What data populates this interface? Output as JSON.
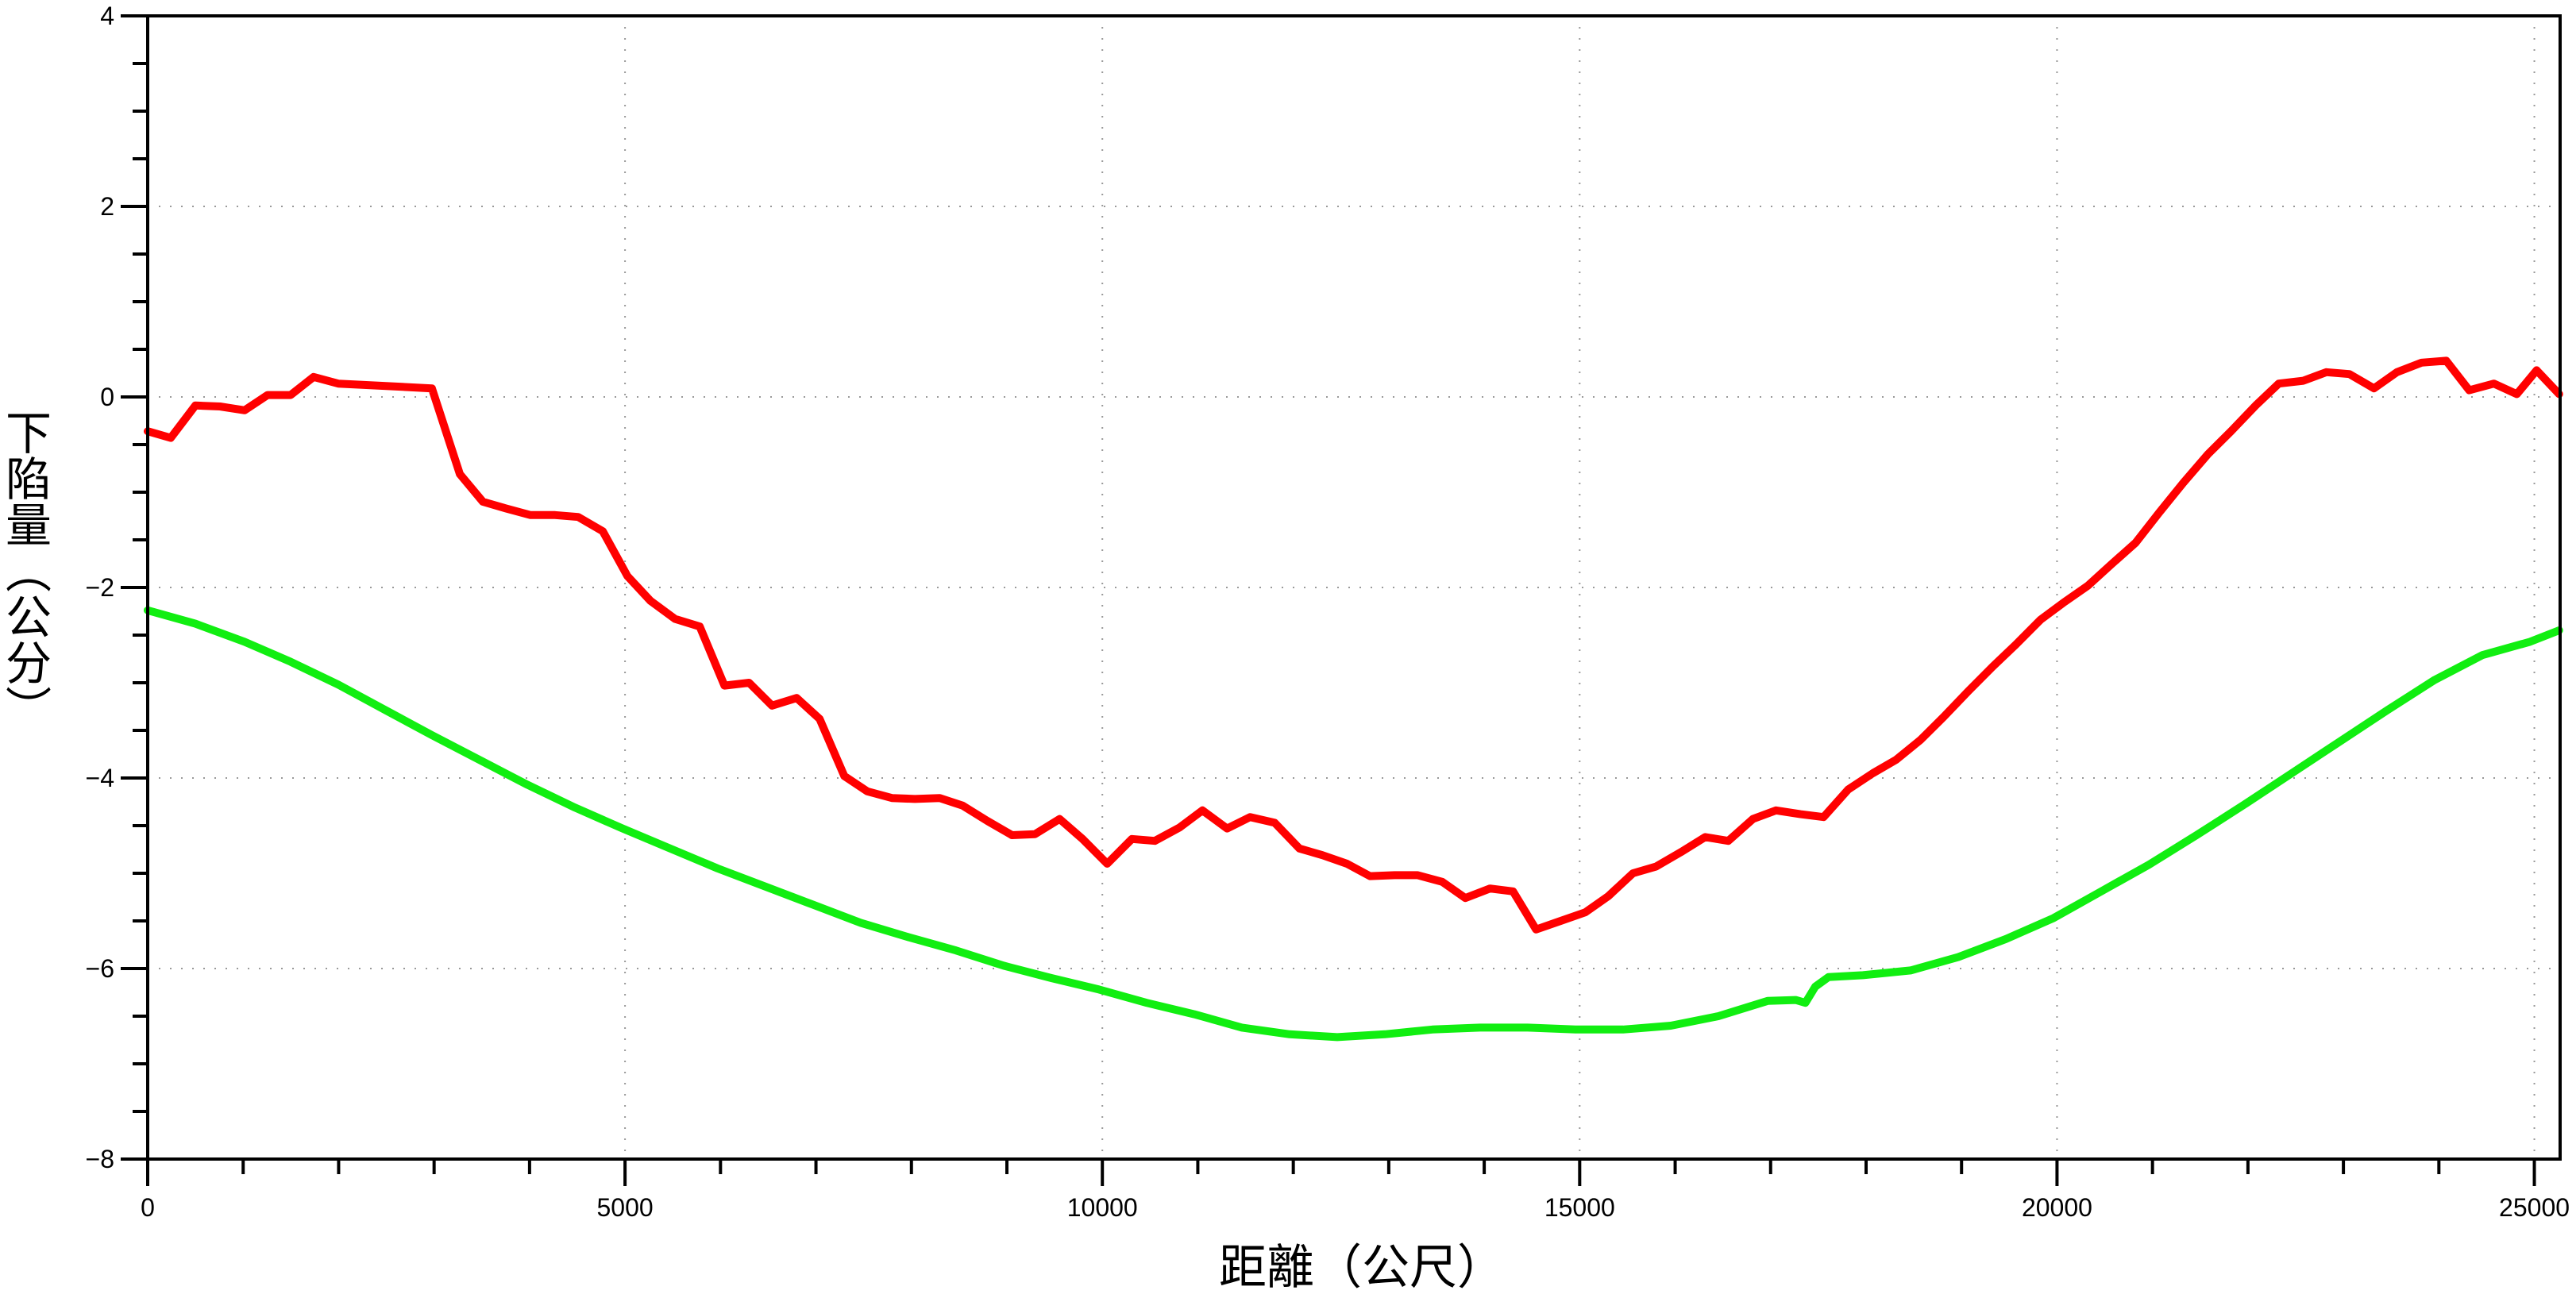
{
  "chart_data": {
    "type": "line",
    "title": "",
    "xlabel": "距離（公尺）",
    "ylabel": "下陷量（公分）",
    "xlim": [
      0,
      25270
    ],
    "ylim": [
      -8,
      4
    ],
    "x_ticks": [
      0,
      5000,
      10000,
      15000,
      20000,
      25000
    ],
    "x_tick_labels": [
      "0",
      "5000",
      "10000",
      "15000",
      "20000",
      "25000"
    ],
    "y_ticks": [
      4,
      2,
      0,
      -2,
      -4,
      -6,
      -8
    ],
    "y_tick_labels": [
      "4",
      "2",
      "0",
      "−2",
      "−4",
      "−6",
      "−8"
    ],
    "grid": true,
    "series": [
      {
        "color": "#ff0000",
        "x": [
          0,
          241,
          499,
          757,
          1015,
          1256,
          1497,
          1738,
          1996,
          2977,
          3270,
          3511,
          3752,
          4010,
          4268,
          4509,
          4767,
          5025,
          5266,
          5524,
          5783,
          6041,
          6299,
          6540,
          6798,
          7039,
          7297,
          7538,
          7796,
          8037,
          8296,
          8537,
          8795,
          9053,
          9294,
          9552,
          9793,
          10051,
          10309,
          10550,
          10808,
          11049,
          11307,
          11548,
          11806,
          12064,
          12305,
          12563,
          12804,
          13062,
          13303,
          13561,
          13802,
          14061,
          14302,
          14543,
          14801,
          15059,
          15300,
          15558,
          15799,
          16057,
          16315,
          16556,
          16815,
          17056,
          17314,
          17555,
          17813,
          18071,
          18312,
          18570,
          18811,
          19069,
          19327,
          19568,
          19826,
          20067,
          20325,
          20566,
          20824,
          21065,
          21324,
          21582,
          21823,
          22081,
          22322,
          22580,
          22821,
          23062,
          23320,
          23561,
          23819,
          24077,
          24318,
          24576,
          24817,
          25024,
          25260
        ],
        "y": [
          -0.36,
          -0.43,
          -0.09,
          -0.1,
          -0.14,
          0.02,
          0.02,
          0.21,
          0.14,
          0.09,
          -0.81,
          -1.1,
          -1.17,
          -1.24,
          -1.24,
          -1.26,
          -1.41,
          -1.88,
          -2.14,
          -2.33,
          -2.41,
          -3.03,
          -3.0,
          -3.24,
          -3.16,
          -3.38,
          -3.98,
          -4.14,
          -4.21,
          -4.22,
          -4.21,
          -4.29,
          -4.45,
          -4.6,
          -4.59,
          -4.43,
          -4.64,
          -4.9,
          -4.64,
          -4.66,
          -4.52,
          -4.34,
          -4.53,
          -4.41,
          -4.47,
          -4.74,
          -4.81,
          -4.9,
          -5.03,
          -5.02,
          -5.02,
          -5.09,
          -5.26,
          -5.16,
          -5.19,
          -5.59,
          -5.5,
          -5.41,
          -5.24,
          -5.0,
          -4.93,
          -4.78,
          -4.62,
          -4.66,
          -4.43,
          -4.34,
          -4.38,
          -4.41,
          -4.12,
          -3.95,
          -3.81,
          -3.6,
          -3.36,
          -3.09,
          -2.83,
          -2.6,
          -2.34,
          -2.16,
          -1.98,
          -1.76,
          -1.53,
          -1.22,
          -0.9,
          -0.6,
          -0.36,
          -0.09,
          0.14,
          0.17,
          0.26,
          0.24,
          0.09,
          0.26,
          0.36,
          0.38,
          0.07,
          0.14,
          0.03,
          0.28,
          0.03
        ]
      },
      {
        "color": "#11ee11",
        "x": [
          0,
          499,
          1015,
          1497,
          1996,
          2495,
          2977,
          3476,
          3976,
          4475,
          4974,
          5473,
          5972,
          6471,
          6970,
          7469,
          7968,
          8467,
          8966,
          9466,
          9965,
          10464,
          10963,
          11462,
          11961,
          12460,
          12959,
          13458,
          13957,
          14456,
          14956,
          15455,
          15954,
          16453,
          16969,
          17262,
          17365,
          17468,
          17606,
          17967,
          18466,
          18965,
          19465,
          19964,
          20463,
          20962,
          21461,
          21960,
          22459,
          22958,
          23457,
          23957,
          24456,
          24955,
          25260
        ],
        "y": [
          -2.24,
          -2.38,
          -2.57,
          -2.78,
          -3.02,
          -3.29,
          -3.55,
          -3.81,
          -4.07,
          -4.31,
          -4.53,
          -4.74,
          -4.95,
          -5.14,
          -5.33,
          -5.52,
          -5.67,
          -5.81,
          -5.97,
          -6.1,
          -6.22,
          -6.36,
          -6.48,
          -6.62,
          -6.69,
          -6.72,
          -6.69,
          -6.64,
          -6.62,
          -6.62,
          -6.64,
          -6.64,
          -6.6,
          -6.5,
          -6.34,
          -6.33,
          -6.36,
          -6.19,
          -6.09,
          -6.07,
          -6.02,
          -5.88,
          -5.69,
          -5.47,
          -5.19,
          -4.91,
          -4.6,
          -4.28,
          -3.95,
          -3.62,
          -3.29,
          -2.97,
          -2.71,
          -2.57,
          -2.45
        ]
      }
    ]
  }
}
